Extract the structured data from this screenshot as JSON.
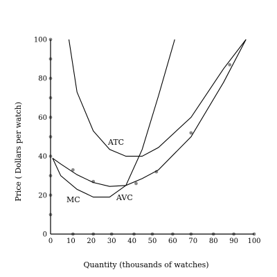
{
  "chart_data": {
    "type": "line",
    "xlabel": "Quantity (thousands of watches)",
    "ylabel": "Price ( Dollars per watch)",
    "xlim": [
      0,
      100
    ],
    "ylim": [
      0,
      100
    ],
    "x_ticks": [
      0,
      10,
      20,
      30,
      40,
      50,
      60,
      70,
      80,
      90,
      100
    ],
    "y_ticks": [
      0,
      20,
      40,
      60,
      80,
      100
    ],
    "grid": false,
    "marker_color": "#888888",
    "series": [
      {
        "name": "ATC",
        "x": [
          9,
          13,
          21,
          29,
          37,
          45,
          53,
          69,
          85,
          96
        ],
        "y": [
          100,
          73,
          53,
          43.5,
          40,
          40,
          44.5,
          60,
          85,
          100
        ]
      },
      {
        "name": "AVC",
        "x": [
          1,
          5,
          13,
          21,
          29,
          37,
          45,
          53,
          69,
          85,
          96
        ],
        "y": [
          39,
          36,
          30.5,
          26.5,
          24.5,
          25,
          28.5,
          33,
          50,
          78,
          100
        ]
      },
      {
        "name": "MC",
        "x": [
          1,
          5,
          13,
          21,
          29,
          37,
          45,
          53,
          61
        ],
        "y": [
          39,
          30,
          23,
          19,
          19,
          25,
          43.5,
          71,
          100
        ]
      }
    ],
    "markers": [
      {
        "x": 0,
        "y": 10
      },
      {
        "x": 0,
        "y": 20
      },
      {
        "x": 0,
        "y": 30
      },
      {
        "x": 0,
        "y": 40
      },
      {
        "x": 0,
        "y": 50
      },
      {
        "x": 0,
        "y": 60
      },
      {
        "x": 0,
        "y": 70
      },
      {
        "x": 0,
        "y": 80
      },
      {
        "x": 0,
        "y": 90
      },
      {
        "x": 0,
        "y": 100
      },
      {
        "x": 11,
        "y": 33
      },
      {
        "x": 21,
        "y": 27
      },
      {
        "x": 42,
        "y": 26
      },
      {
        "x": 52,
        "y": 32
      },
      {
        "x": 69,
        "y": 52
      },
      {
        "x": 88,
        "y": 87
      },
      {
        "x": 11,
        "y": 0
      },
      {
        "x": 21,
        "y": 0
      },
      {
        "x": 30,
        "y": 0
      },
      {
        "x": 41,
        "y": 0
      },
      {
        "x": 50,
        "y": 0
      },
      {
        "x": 60,
        "y": 0
      },
      {
        "x": 69,
        "y": 0
      },
      {
        "x": 80,
        "y": 0
      },
      {
        "x": 90,
        "y": 0
      },
      {
        "x": 100,
        "y": 0
      }
    ]
  }
}
